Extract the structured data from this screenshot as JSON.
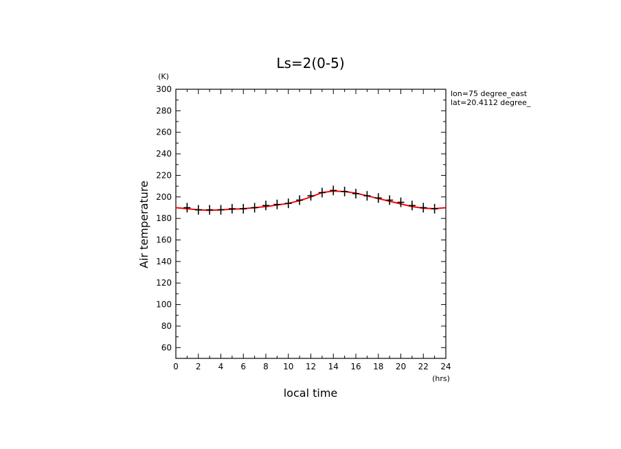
{
  "chart_data": {
    "type": "line",
    "title": "Ls=2(0-5)",
    "xlabel": "local time",
    "ylabel": "Air temperature",
    "x_unit": "(hrs)",
    "y_unit": "(K)",
    "xlim": [
      0,
      24
    ],
    "ylim": [
      50,
      300
    ],
    "x_major_ticks": [
      0,
      2,
      4,
      6,
      8,
      10,
      12,
      14,
      16,
      18,
      20,
      22,
      24
    ],
    "y_major_ticks": [
      60,
      80,
      100,
      120,
      140,
      160,
      180,
      200,
      220,
      240,
      260,
      280,
      300
    ],
    "annotations": [
      "lon=75 degree_east",
      "lat=20.4112 degree_"
    ],
    "grid": false,
    "series": [
      {
        "style": "line",
        "color": "#ff0000",
        "x": [
          0,
          1,
          2,
          3,
          4,
          5,
          6,
          7,
          8,
          9,
          10,
          11,
          12,
          13,
          14,
          15,
          16,
          17,
          18,
          19,
          20,
          21,
          22,
          23,
          24
        ],
        "y": [
          190,
          189,
          188,
          187.5,
          188,
          188.5,
          189,
          190,
          191,
          192.5,
          194,
          196.5,
          200,
          204,
          205.5,
          205,
          203.5,
          201,
          198.5,
          196,
          193.5,
          191,
          189.5,
          189,
          190
        ]
      },
      {
        "style": "markers",
        "marker": "plus",
        "color": "#000000",
        "x": [
          1,
          2,
          3,
          4,
          5,
          6,
          7,
          8,
          9,
          10,
          11,
          12,
          13,
          14,
          15,
          16,
          17,
          18,
          19,
          20,
          21,
          22,
          23
        ],
        "y": [
          190,
          188,
          188,
          188,
          189,
          189,
          190,
          192,
          193,
          194,
          197,
          201,
          204,
          206,
          205,
          203,
          201,
          199,
          197,
          195,
          192,
          190,
          189
        ]
      }
    ]
  }
}
